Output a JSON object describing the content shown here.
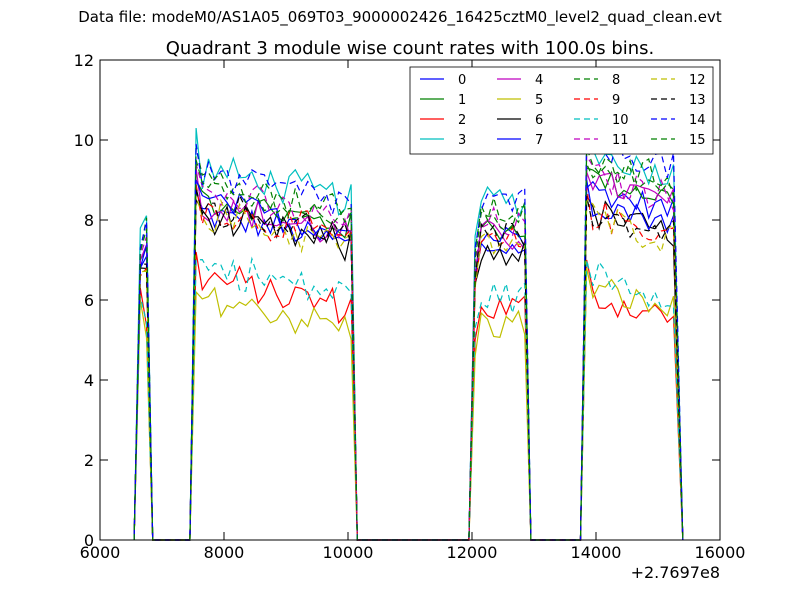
{
  "suptitle": "Data file: modeM0/AS1A05_069T03_9000002426_16425cztM0_level2_quad_clean.evt",
  "chart_data": {
    "type": "line",
    "title": "Quadrant 3 module wise count rates with 100.0s bins.",
    "xlabel": "",
    "ylabel": "",
    "x_offset_label": "+2.7697e8",
    "xlim": [
      6000,
      16000
    ],
    "ylim": [
      0,
      12
    ],
    "xticks": [
      6000,
      8000,
      10000,
      12000,
      14000,
      16000
    ],
    "yticks": [
      0,
      2,
      4,
      6,
      8,
      10,
      12
    ],
    "grid": false,
    "legend_position": "top-right",
    "legend_columns": 4,
    "colors": [
      "#0000ff",
      "#008000",
      "#ff0000",
      "#00bfbf",
      "#bf00bf",
      "#bfbf00",
      "#000000"
    ],
    "series": [
      {
        "name": "0",
        "style": "solid",
        "means": [
          7.0,
          7.6,
          7.3,
          8.5
        ],
        "start_values": [
          6.8,
          8.7,
          6.5,
          8.8
        ],
        "jitter": 0.25
      },
      {
        "name": "1",
        "style": "solid",
        "means": [
          7.5,
          8.0,
          7.8,
          8.8
        ],
        "start_values": [
          7.0,
          9.0,
          6.6,
          9.3
        ],
        "jitter": 0.25
      },
      {
        "name": "2",
        "style": "solid",
        "means": [
          5.2,
          6.0,
          5.8,
          5.8
        ],
        "start_values": [
          6.3,
          7.2,
          5.0,
          7.0
        ],
        "jitter": 0.3
      },
      {
        "name": "3",
        "style": "solid",
        "means": [
          7.9,
          8.7,
          8.5,
          9.4
        ],
        "start_values": [
          7.8,
          10.3,
          7.6,
          10.0
        ],
        "jitter": 0.3
      },
      {
        "name": "4",
        "style": "solid",
        "means": [
          7.6,
          7.8,
          7.6,
          8.7
        ],
        "start_values": [
          7.0,
          9.3,
          6.6,
          9.2
        ],
        "jitter": 0.3
      },
      {
        "name": "5",
        "style": "solid",
        "means": [
          4.8,
          5.5,
          5.4,
          6.0
        ],
        "start_values": [
          6.0,
          6.2,
          4.6,
          6.8
        ],
        "jitter": 0.3
      },
      {
        "name": "6",
        "style": "solid",
        "means": [
          6.9,
          7.5,
          7.2,
          7.9
        ],
        "start_values": [
          6.8,
          8.5,
          6.4,
          8.6
        ],
        "jitter": 0.3
      },
      {
        "name": "7",
        "style": "solid",
        "means": [
          7.2,
          7.9,
          7.6,
          8.2
        ],
        "start_values": [
          6.8,
          9.0,
          6.6,
          9.0
        ],
        "jitter": 0.25
      },
      {
        "name": "8",
        "style": "dashed",
        "means": [
          8.0,
          8.4,
          8.2,
          9.0
        ],
        "start_values": [
          7.2,
          9.8,
          7.2,
          9.4
        ],
        "jitter": 0.3
      },
      {
        "name": "9",
        "style": "dashed",
        "means": [
          7.2,
          7.7,
          7.4,
          7.9
        ],
        "start_values": [
          6.6,
          8.9,
          6.4,
          8.8
        ],
        "jitter": 0.3
      },
      {
        "name": "10",
        "style": "dashed",
        "means": [
          5.8,
          6.3,
          6.1,
          6.4
        ],
        "start_values": [
          6.1,
          7.0,
          5.3,
          7.0
        ],
        "jitter": 0.3
      },
      {
        "name": "11",
        "style": "dashed",
        "means": [
          7.5,
          8.1,
          7.9,
          8.8
        ],
        "start_values": [
          7.1,
          9.4,
          6.9,
          9.6
        ],
        "jitter": 0.3
      },
      {
        "name": "12",
        "style": "dashed",
        "means": [
          7.0,
          7.6,
          7.4,
          7.8
        ],
        "start_values": [
          6.7,
          8.6,
          6.3,
          8.5
        ],
        "jitter": 0.3
      },
      {
        "name": "13",
        "style": "dashed",
        "means": [
          7.3,
          7.8,
          7.5,
          7.9
        ],
        "start_values": [
          6.9,
          8.8,
          6.5,
          8.6
        ],
        "jitter": 0.3
      },
      {
        "name": "14",
        "style": "dashed",
        "means": [
          8.3,
          8.6,
          8.4,
          9.6
        ],
        "start_values": [
          7.3,
          9.9,
          7.3,
          10.2
        ],
        "jitter": 0.3
      },
      {
        "name": "15",
        "style": "dashed",
        "means": [
          7.8,
          8.2,
          8.0,
          9.2
        ],
        "start_values": [
          7.2,
          9.5,
          7.0,
          9.8
        ],
        "jitter": 0.3
      }
    ],
    "segments": [
      {
        "x_start": 6650,
        "x_end": 6750
      },
      {
        "x_start": 7550,
        "x_end": 10050
      },
      {
        "x_start": 12050,
        "x_end": 12850
      },
      {
        "x_start": 13850,
        "x_end": 15300
      }
    ],
    "bin_seconds": 100,
    "gap_level": 0
  }
}
